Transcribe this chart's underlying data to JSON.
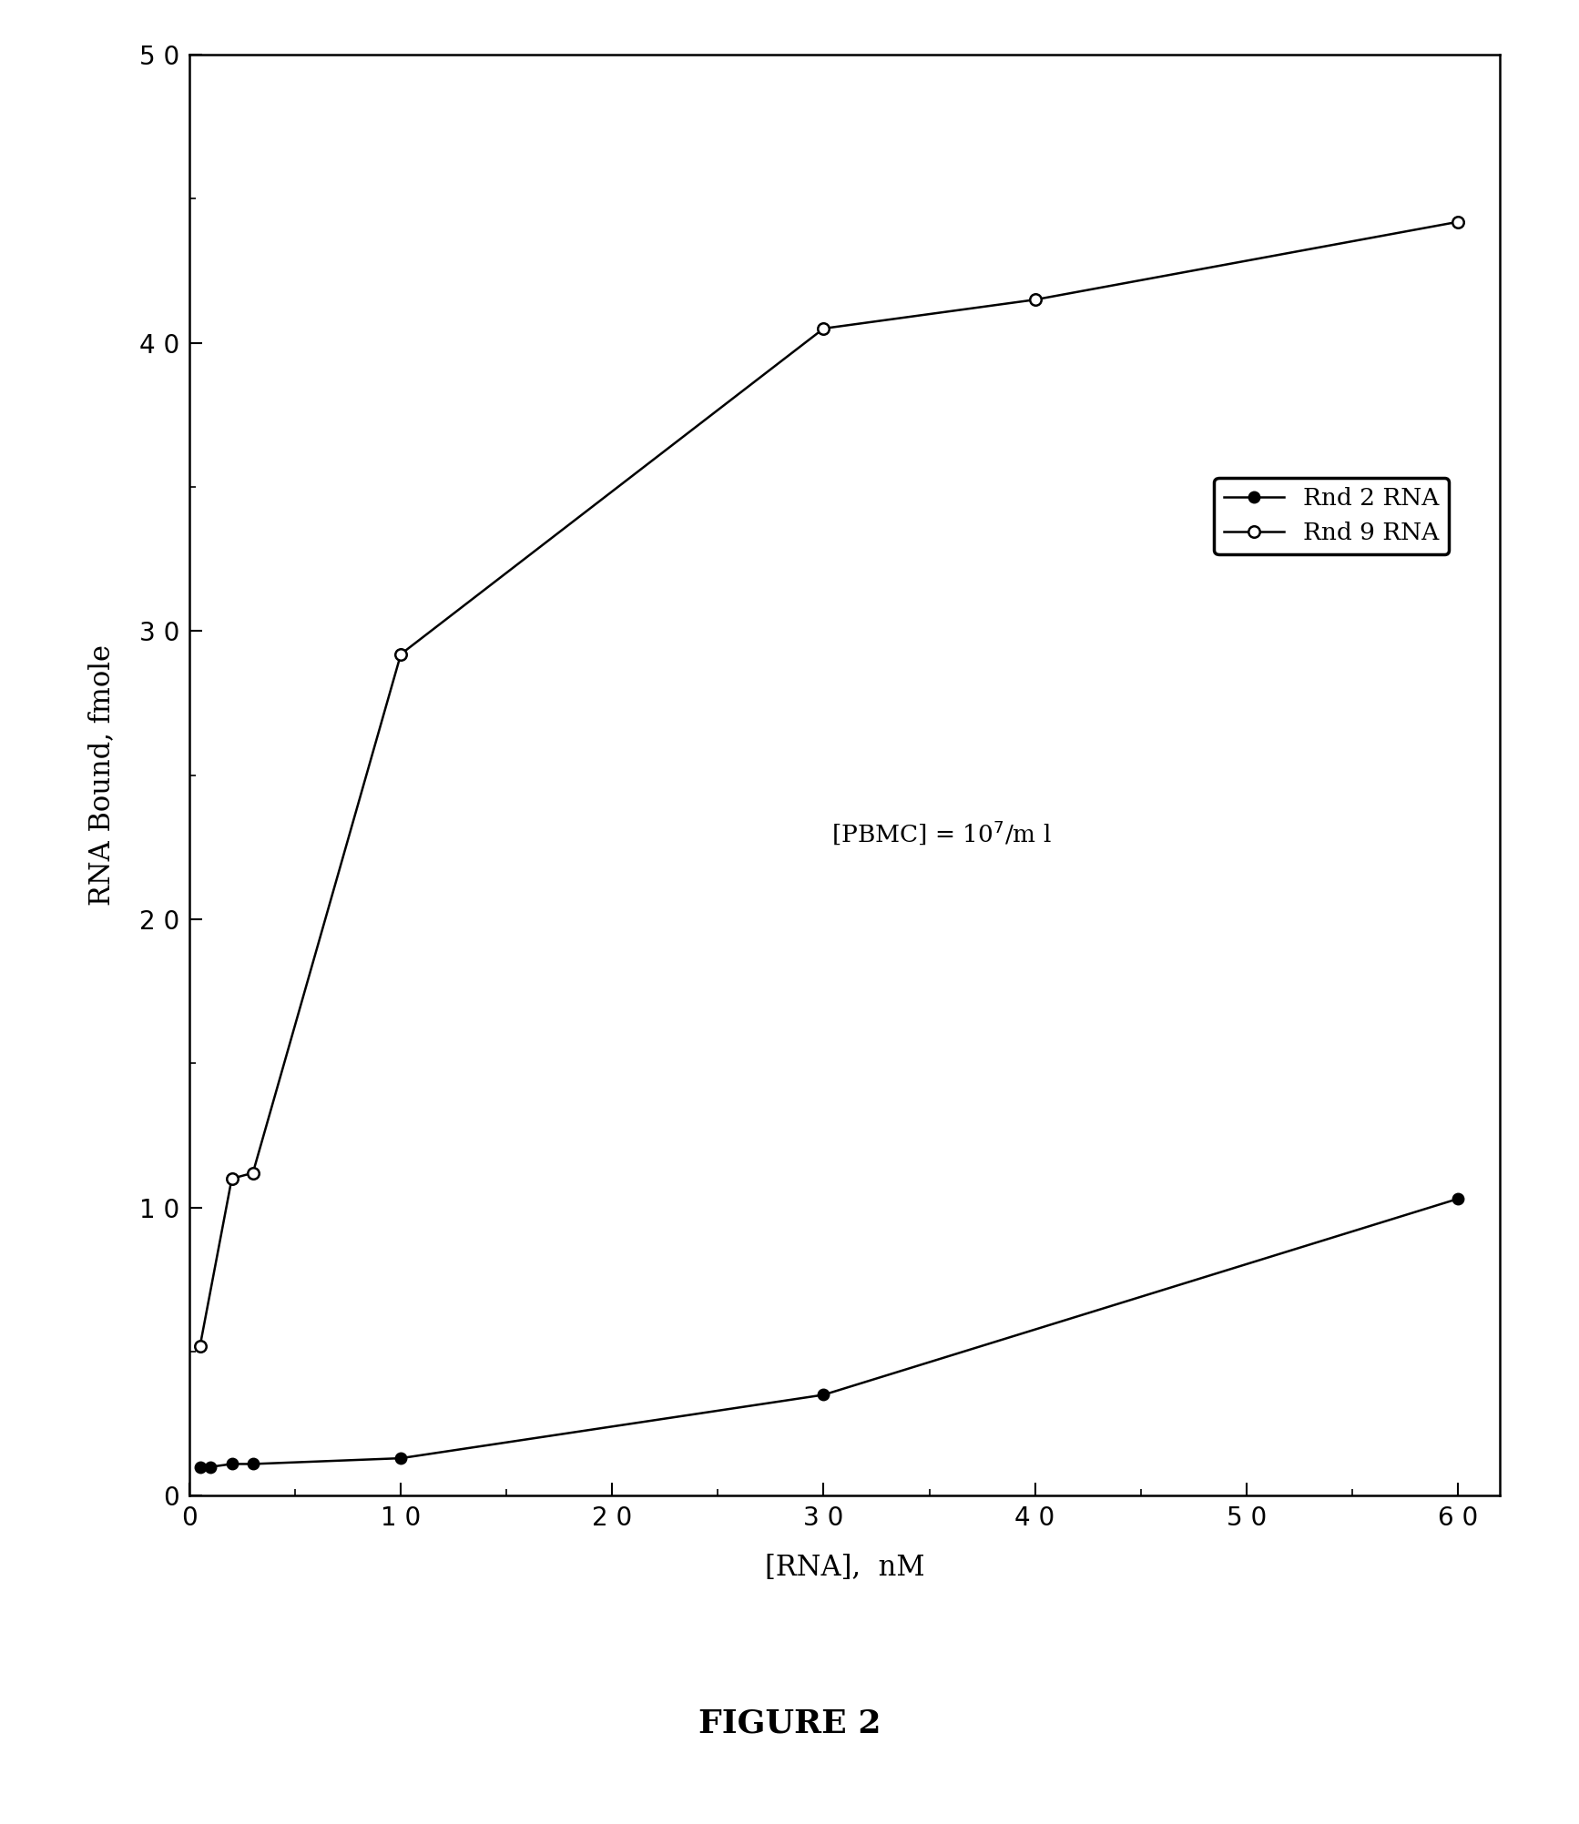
{
  "rnd2_x": [
    0.5,
    1,
    2,
    3,
    10,
    30,
    60
  ],
  "rnd2_y": [
    1.0,
    1.0,
    1.1,
    1.1,
    1.3,
    3.5,
    10.3
  ],
  "rnd9_x": [
    0.5,
    2,
    3,
    10,
    30,
    40,
    60
  ],
  "rnd9_y": [
    5.2,
    11.0,
    11.2,
    29.2,
    40.5,
    41.5,
    44.2
  ],
  "xlabel": "[RNA],  nM",
  "ylabel": "RNA Bound, fmole",
  "legend1": "Rnd 2 RNA",
  "legend2": "Rnd 9 RNA",
  "xlim": [
    0,
    62
  ],
  "ylim": [
    0,
    50
  ],
  "xticks": [
    0,
    10,
    20,
    30,
    40,
    50,
    60
  ],
  "yticks": [
    0,
    10,
    20,
    30,
    40,
    50
  ],
  "figure_label": "FIGURE 2",
  "background_color": "#ffffff",
  "line_color": "#000000",
  "marker_size": 9,
  "linewidth": 1.8,
  "title_fontsize": 22,
  "label_fontsize": 22,
  "tick_fontsize": 20,
  "legend_fontsize": 19,
  "annot_fontsize": 19,
  "annot_sup_fontsize": 13
}
